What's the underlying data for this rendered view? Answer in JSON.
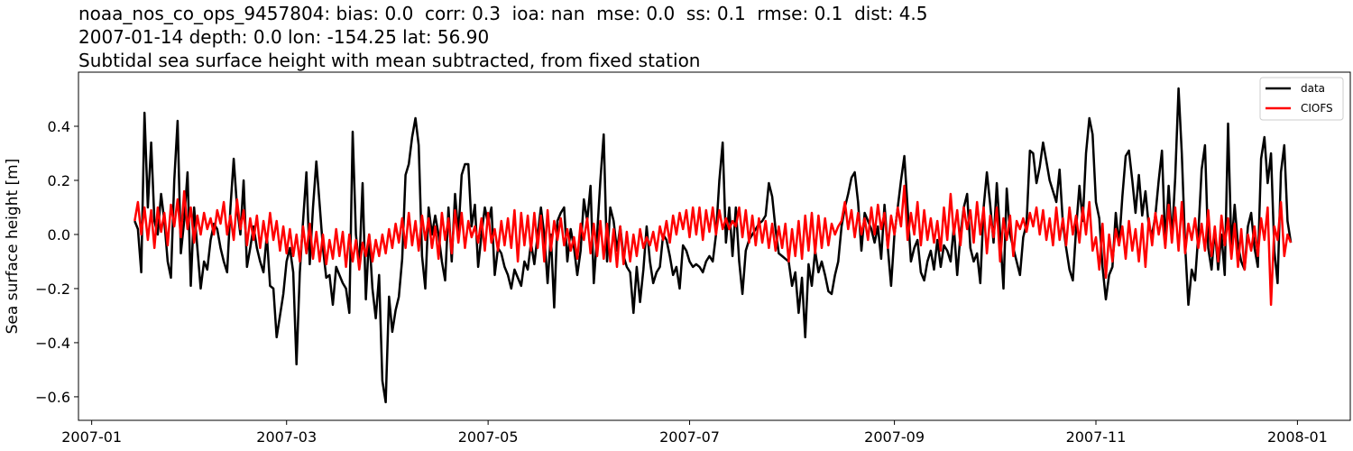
{
  "chart_data": {
    "type": "line",
    "title_lines": [
      "noaa_nos_co_ops_9457804: bias: 0.0  corr: 0.3  ioa: nan  mse: 0.0  ss: 0.1  rmse: 0.1  dist: 4.5",
      "2007-01-14 depth: 0.0 lon: -154.25 lat: 56.90",
      "Subtidal sea surface height with mean subtracted, from fixed station"
    ],
    "xlabel": "",
    "ylabel": "Sea surface height [m]",
    "xlim": [
      "2006-12-28",
      "2008-01-17"
    ],
    "ylim": [
      -0.687,
      0.6
    ],
    "grid": false,
    "legend_position": "top-right",
    "x_ticks": [
      "2007-01",
      "2007-03",
      "2007-05",
      "2007-07",
      "2007-09",
      "2007-11",
      "2008-01"
    ],
    "y_ticks": [
      {
        "value": -0.6,
        "label": "−0.6"
      },
      {
        "value": -0.4,
        "label": "−0.4"
      },
      {
        "value": -0.2,
        "label": "−0.2"
      },
      {
        "value": 0.0,
        "label": "0.0"
      },
      {
        "value": 0.2,
        "label": "0.2"
      },
      {
        "value": 0.4,
        "label": "0.4"
      }
    ],
    "x": {
      "start": "2007-01-14",
      "step": "1 day"
    },
    "series": [
      {
        "name": "data",
        "color": "#000000",
        "values": [
          0.05,
          0.02,
          -0.14,
          0.45,
          0.1,
          0.34,
          0.05,
          0.0,
          0.15,
          0.05,
          -0.1,
          -0.16,
          0.2,
          0.42,
          -0.07,
          0.05,
          0.23,
          -0.19,
          0.1,
          -0.05,
          -0.2,
          -0.1,
          -0.13,
          -0.02,
          0.04,
          0.02,
          -0.05,
          -0.1,
          -0.14,
          0.1,
          0.28,
          0.1,
          0.0,
          0.2,
          -0.12,
          -0.05,
          0.03,
          -0.05,
          -0.1,
          -0.14,
          0.0,
          -0.19,
          -0.2,
          -0.38,
          -0.3,
          -0.22,
          -0.1,
          -0.05,
          -0.14,
          -0.48,
          -0.14,
          0.05,
          0.23,
          -0.11,
          0.1,
          0.27,
          0.11,
          -0.05,
          -0.16,
          -0.15,
          -0.26,
          -0.12,
          -0.15,
          -0.18,
          -0.2,
          -0.29,
          0.38,
          0.0,
          -0.12,
          0.19,
          -0.24,
          0.0,
          -0.2,
          -0.31,
          -0.15,
          -0.54,
          -0.62,
          -0.23,
          -0.36,
          -0.28,
          -0.23,
          -0.09,
          0.22,
          0.26,
          0.36,
          0.43,
          0.33,
          -0.08,
          -0.2,
          0.1,
          0.0,
          0.07,
          0.0,
          -0.1,
          -0.17,
          0.1,
          -0.1,
          0.15,
          0.0,
          0.22,
          0.26,
          0.26,
          0.03,
          0.11,
          -0.12,
          0.0,
          0.1,
          0.04,
          0.1,
          -0.15,
          -0.05,
          -0.07,
          -0.12,
          -0.15,
          -0.2,
          -0.13,
          -0.16,
          -0.19,
          -0.1,
          -0.13,
          -0.03,
          -0.11,
          0.0,
          0.1,
          0.0,
          -0.18,
          0.0,
          -0.27,
          0.05,
          0.08,
          0.1,
          -0.1,
          0.02,
          -0.05,
          -0.15,
          -0.06,
          0.13,
          0.05,
          0.18,
          -0.18,
          0.0,
          0.2,
          0.37,
          -0.1,
          0.1,
          0.05,
          -0.06,
          0.03,
          -0.08,
          -0.12,
          -0.14,
          -0.29,
          -0.12,
          -0.25,
          -0.13,
          0.03,
          -0.1,
          -0.18,
          -0.14,
          -0.12,
          0.0,
          -0.02,
          -0.08,
          -0.15,
          -0.12,
          -0.2,
          -0.04,
          -0.06,
          -0.1,
          -0.12,
          -0.11,
          -0.12,
          -0.14,
          -0.1,
          -0.08,
          -0.1,
          0.0,
          0.2,
          0.34,
          -0.03,
          0.1,
          -0.08,
          0.1,
          -0.1,
          -0.22,
          -0.06,
          -0.02,
          0.0,
          0.02,
          0.04,
          0.05,
          0.07,
          0.19,
          0.14,
          0.02,
          -0.07,
          -0.08,
          -0.09,
          -0.1,
          -0.19,
          -0.14,
          -0.29,
          -0.16,
          -0.38,
          -0.11,
          -0.19,
          -0.06,
          -0.14,
          -0.1,
          -0.15,
          -0.21,
          -0.22,
          -0.15,
          -0.1,
          0.03,
          0.1,
          0.15,
          0.21,
          0.23,
          0.12,
          -0.06,
          0.08,
          0.05,
          0.02,
          -0.03,
          0.03,
          -0.09,
          0.11,
          -0.05,
          -0.19,
          0.0,
          0.1,
          0.2,
          0.29,
          0.1,
          -0.1,
          -0.05,
          -0.02,
          -0.14,
          -0.17,
          -0.1,
          -0.06,
          -0.13,
          -0.02,
          -0.12,
          -0.04,
          -0.06,
          -0.1,
          0.03,
          -0.15,
          0.0,
          0.1,
          0.15,
          -0.05,
          -0.1,
          -0.07,
          -0.18,
          0.1,
          0.23,
          0.11,
          -0.03,
          0.19,
          0.0,
          -0.2,
          0.17,
          0.0,
          -0.05,
          -0.1,
          -0.15,
          -0.01,
          0.04,
          0.31,
          0.3,
          0.19,
          0.25,
          0.34,
          0.27,
          0.2,
          0.16,
          0.12,
          0.24,
          0.04,
          -0.05,
          -0.13,
          -0.17,
          0.02,
          0.18,
          0.05,
          0.3,
          0.43,
          0.37,
          0.12,
          0.06,
          -0.12,
          -0.24,
          -0.15,
          -0.12,
          0.08,
          -0.04,
          0.14,
          0.29,
          0.31,
          0.2,
          0.08,
          0.22,
          0.07,
          0.16,
          0.03,
          0.0,
          0.07,
          0.2,
          0.31,
          -0.04,
          0.18,
          -0.02,
          0.21,
          0.54,
          0.3,
          -0.04,
          -0.26,
          -0.13,
          -0.17,
          0.0,
          0.24,
          0.33,
          -0.05,
          -0.13,
          0.02,
          -0.13,
          0.0,
          -0.15,
          0.41,
          -0.05,
          0.11,
          -0.04,
          -0.1,
          -0.13,
          0.03,
          0.08,
          -0.05,
          -0.12,
          0.28,
          0.36,
          0.19,
          0.3,
          -0.06,
          -0.18,
          0.23,
          0.33,
          0.05,
          -0.03
        ]
      },
      {
        "name": "CIOFS",
        "color": "#ff0000",
        "values": [
          0.05,
          0.12,
          0.0,
          0.1,
          -0.02,
          0.09,
          -0.05,
          0.1,
          0.01,
          0.08,
          -0.04,
          0.11,
          0.03,
          0.13,
          -0.01,
          0.16,
          0.02,
          0.1,
          -0.03,
          0.07,
          0.0,
          0.08,
          0.02,
          0.06,
          0.0,
          0.09,
          0.04,
          0.12,
          0.0,
          0.07,
          -0.02,
          0.13,
          0.02,
          0.09,
          -0.04,
          0.06,
          -0.02,
          0.07,
          -0.05,
          0.05,
          -0.03,
          0.08,
          -0.02,
          0.05,
          -0.06,
          0.03,
          -0.07,
          0.02,
          -0.08,
          0.0,
          -0.1,
          0.03,
          -0.07,
          0.04,
          -0.09,
          0.01,
          -0.1,
          0.0,
          -0.11,
          -0.02,
          -0.09,
          0.02,
          -0.08,
          0.01,
          -0.12,
          0.0,
          -0.1,
          -0.02,
          -0.13,
          -0.03,
          -0.08,
          0.0,
          -0.1,
          -0.02,
          -0.08,
          0.0,
          -0.07,
          0.02,
          -0.05,
          0.04,
          -0.03,
          0.06,
          -0.05,
          0.08,
          -0.04,
          0.05,
          -0.06,
          0.07,
          -0.02,
          0.06,
          -0.05,
          0.03,
          -0.09,
          0.08,
          -0.02,
          0.06,
          -0.07,
          0.09,
          -0.03,
          0.08,
          -0.05,
          0.05,
          -0.01,
          0.03,
          -0.03,
          0.06,
          -0.06,
          0.08,
          -0.03,
          0.02,
          -0.06,
          0.05,
          -0.04,
          0.06,
          -0.05,
          0.09,
          -0.1,
          0.08,
          -0.04,
          0.07,
          -0.06,
          0.08,
          -0.05,
          0.07,
          -0.1,
          0.09,
          -0.06,
          0.05,
          -0.02,
          0.06,
          -0.04,
          0.02,
          -0.06,
          -0.01,
          -0.09,
          0.04,
          -0.02,
          0.06,
          -0.07,
          0.04,
          -0.08,
          0.05,
          -0.09,
          0.04,
          -0.1,
          0.02,
          -0.12,
          0.03,
          -0.11,
          0.01,
          -0.1,
          0.0,
          -0.08,
          0.02,
          -0.05,
          -0.01,
          -0.04,
          0.01,
          -0.06,
          0.03,
          -0.02,
          0.05,
          -0.03,
          0.07,
          0.0,
          0.08,
          0.02,
          0.09,
          -0.01,
          0.1,
          0.0,
          0.1,
          -0.02,
          0.09,
          0.01,
          0.1,
          0.0,
          0.09,
          0.02,
          0.06,
          0.02,
          0.05,
          0.03,
          0.1,
          -0.01,
          0.09,
          -0.03,
          0.07,
          -0.04,
          0.06,
          -0.03,
          0.05,
          -0.05,
          0.04,
          -0.06,
          0.03,
          -0.05,
          0.04,
          -0.1,
          0.02,
          -0.08,
          0.05,
          -0.09,
          0.07,
          -0.06,
          0.08,
          -0.07,
          0.07,
          -0.05,
          0.06,
          -0.04,
          0.04,
          0.0,
          0.03,
          0.05,
          0.12,
          0.02,
          0.09,
          -0.01,
          0.08,
          0.0,
          0.06,
          -0.02,
          0.1,
          0.0,
          0.11,
          0.02,
          0.08,
          -0.05,
          0.07,
          0.0,
          0.1,
          0.03,
          0.18,
          -0.02,
          0.08,
          0.0,
          0.12,
          -0.04,
          0.09,
          -0.02,
          0.06,
          -0.03,
          0.05,
          -0.06,
          0.1,
          -0.02,
          0.15,
          0.0,
          0.09,
          -0.04,
          0.1,
          0.02,
          0.09,
          -0.03,
          0.12,
          0.0,
          0.1,
          -0.07,
          0.07,
          -0.01,
          0.1,
          -0.1,
          0.06,
          -0.02,
          0.07,
          -0.08,
          0.05,
          0.02,
          0.06,
          0.01,
          0.08,
          0.03,
          0.1,
          0.0,
          0.09,
          -0.02,
          0.06,
          -0.04,
          0.1,
          -0.02,
          0.06,
          -0.04,
          0.1,
          0.0,
          0.07,
          -0.03,
          0.1,
          0.0,
          0.12,
          -0.06,
          -0.01,
          -0.13,
          0.04,
          -0.16,
          0.0,
          -0.1,
          0.02,
          -0.04,
          0.03,
          -0.09,
          0.05,
          -0.06,
          0.02,
          -0.1,
          0.04,
          -0.12,
          0.06,
          -0.04,
          0.08,
          0.0,
          0.07,
          -0.05,
          0.11,
          -0.03,
          0.1,
          -0.06,
          0.12,
          -0.07,
          0.04,
          -0.02,
          0.06,
          -0.05,
          0.04,
          -0.06,
          0.09,
          -0.08,
          0.03,
          -0.1,
          0.07,
          -0.04,
          0.06,
          -0.09,
          0.04,
          -0.12,
          0.02,
          -0.13,
          0.0,
          -0.06,
          0.03,
          -0.08,
          0.06,
          -0.02,
          0.1,
          -0.26,
          0.03,
          -0.02,
          0.12,
          -0.08,
          0.0,
          -0.03
        ]
      }
    ]
  }
}
